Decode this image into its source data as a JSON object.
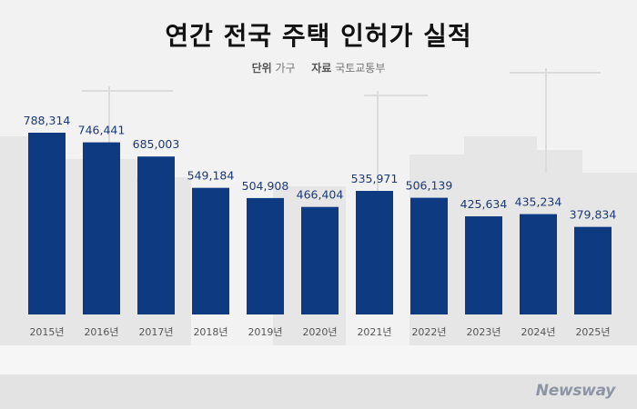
{
  "title": "연간 전국 주택 인허가 실적",
  "meta": {
    "unit_label": "단위",
    "unit_value": "가구",
    "source_label": "자료",
    "source_value": "국토교통부"
  },
  "logo": "Newsway",
  "colors": {
    "bar": "#0e3a82",
    "value_label": "#1a3a78",
    "tick": "#555555"
  },
  "chart_data": {
    "type": "bar",
    "title": "연간 전국 주택 인허가 실적",
    "categories": [
      "2015년",
      "2016년",
      "2017년",
      "2018년",
      "2019년",
      "2020년",
      "2021년",
      "2022년",
      "2023년",
      "2024년",
      "2025년"
    ],
    "values": [
      788314,
      746441,
      685003,
      549184,
      504908,
      466404,
      535971,
      506139,
      425634,
      435234,
      379834
    ],
    "value_labels": [
      "788,314",
      "746,441",
      "685,003",
      "549,184",
      "504,908",
      "466,404",
      "535,971",
      "506,139",
      "425,634",
      "435,234",
      "379,834"
    ],
    "ylim": [
      0,
      788314
    ],
    "grid": false,
    "legend": "none"
  }
}
